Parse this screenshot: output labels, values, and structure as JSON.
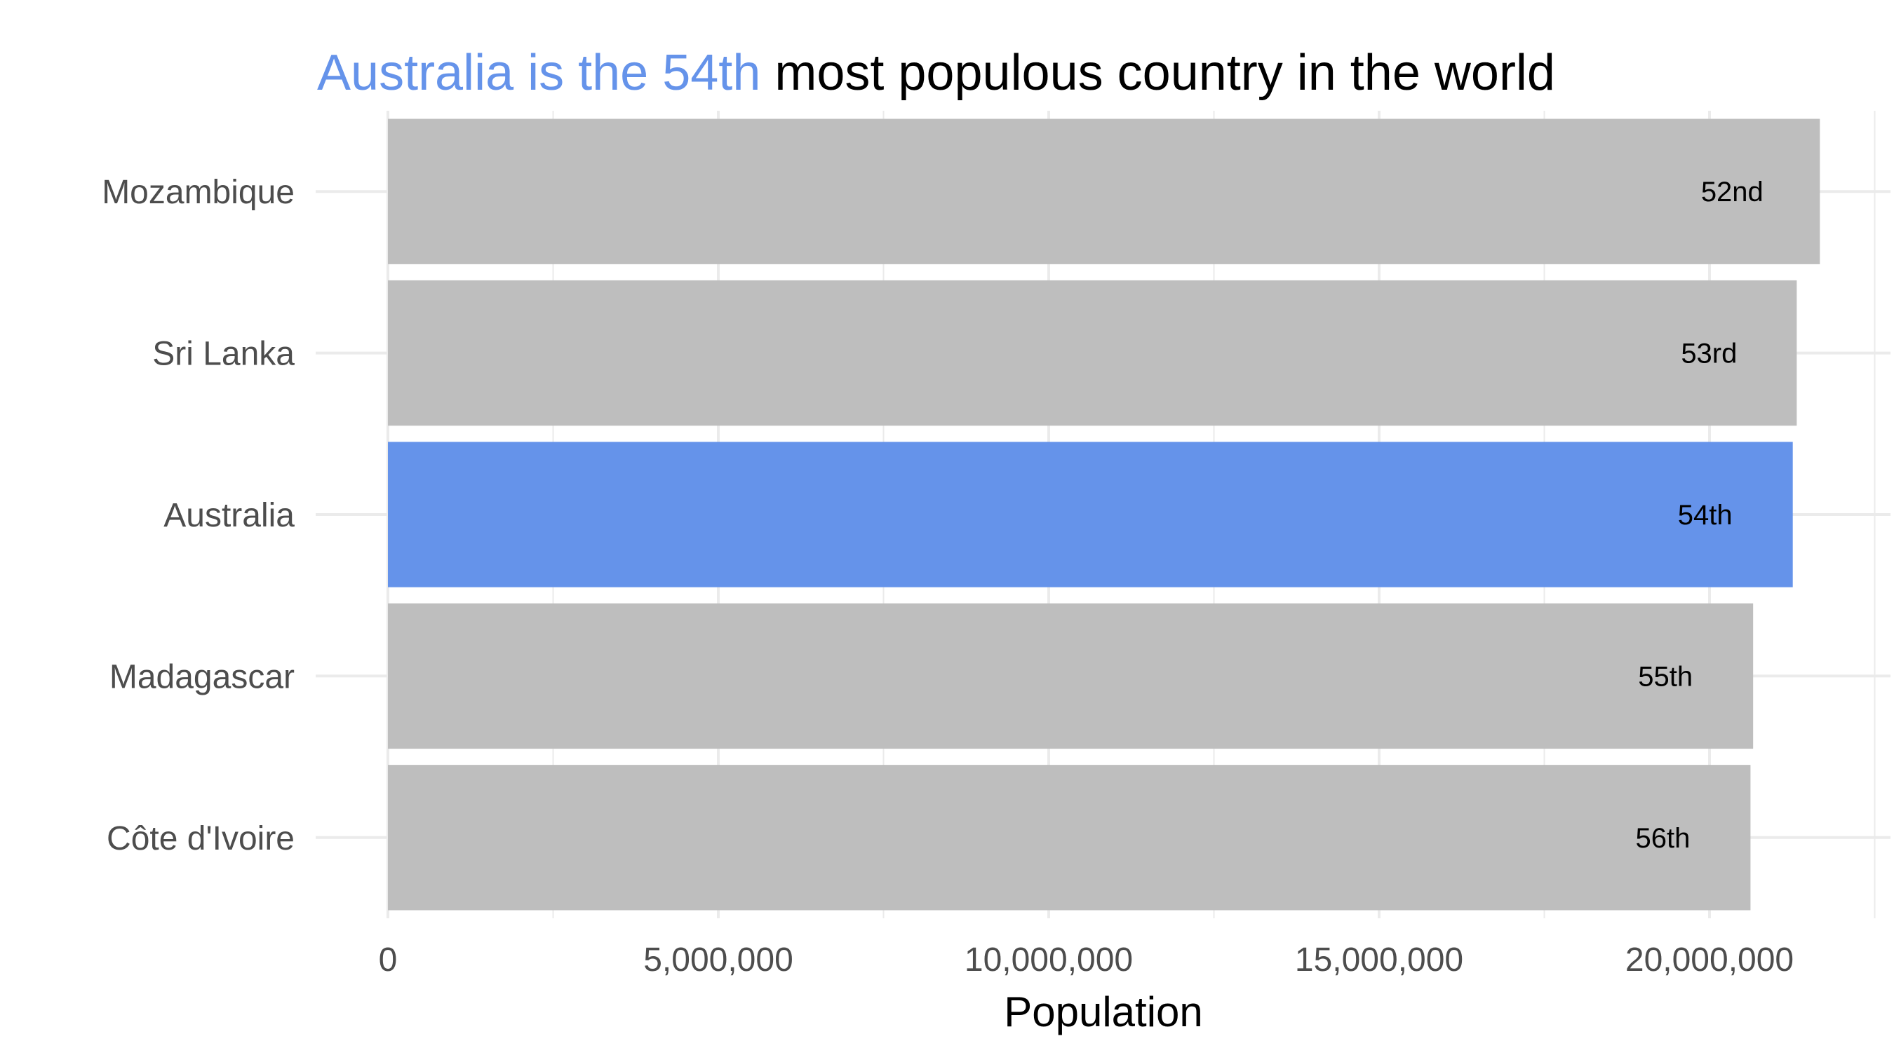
{
  "colors": {
    "highlight": "#6593EA",
    "bar": "#BEBEBE",
    "grid": "#EBEBEB",
    "tick_text": "#4D4D4D",
    "text": "#000000",
    "background": "#FFFFFF"
  },
  "chart_data": {
    "type": "bar",
    "orientation": "horizontal",
    "title": {
      "highlight": "Australia is the 54th",
      "rest": " most populous country in the world"
    },
    "xlabel": "Population",
    "ylabel": "",
    "xlim": [
      0,
      22500000
    ],
    "x_ticks": [
      0,
      5000000,
      10000000,
      15000000,
      20000000
    ],
    "x_tick_labels": [
      "0",
      "5,000,000",
      "10,000,000",
      "15,000,000",
      "20,000,000"
    ],
    "grid": true,
    "legend": "none",
    "categories": [
      "Mozambique",
      "Sri Lanka",
      "Australia",
      "Madagascar",
      "Côte d'Ivoire"
    ],
    "values": [
      21670000,
      21320000,
      21260000,
      20660000,
      20620000
    ],
    "bar_labels": [
      "52nd",
      "53rd",
      "54th",
      "55th",
      "56th"
    ],
    "highlighted_category": "Australia"
  }
}
